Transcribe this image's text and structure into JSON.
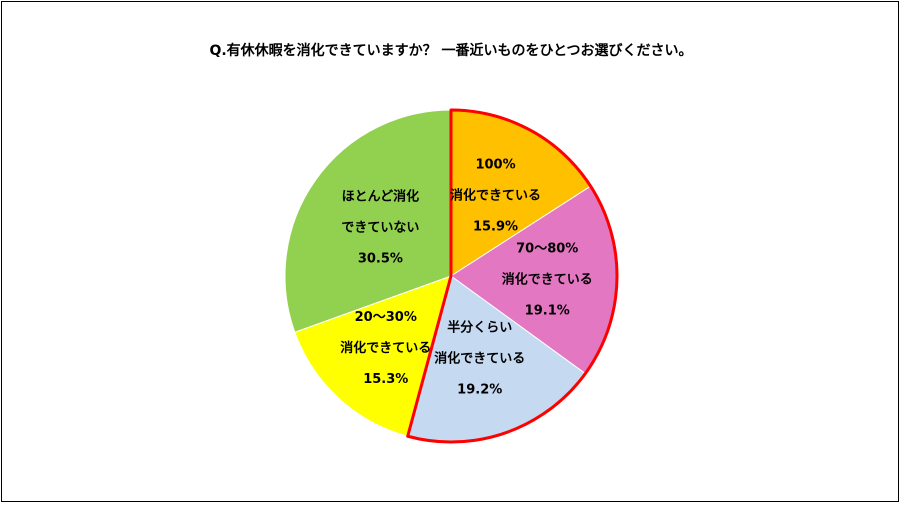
{
  "chart_data": {
    "type": "pie",
    "title": "Q.有休休暇を消化できていますか？ 一番近いものをひとつお選びください。",
    "slices": [
      {
        "label_lines": [
          "100%",
          "消化できている"
        ],
        "value": 15.9,
        "value_label": "15.9%",
        "color": "#FFC000",
        "highlighted": true
      },
      {
        "label_lines": [
          "70～80%",
          "消化できている"
        ],
        "value": 19.1,
        "value_label": "19.1%",
        "color": "#E377C2",
        "highlighted": true
      },
      {
        "label_lines": [
          "半分くらい",
          "消化できている"
        ],
        "value": 19.2,
        "value_label": "19.2%",
        "color": "#C5D9F1",
        "highlighted": true
      },
      {
        "label_lines": [
          "20～30%",
          "消化できている"
        ],
        "value": 15.3,
        "value_label": "15.3%",
        "color": "#FFFF00",
        "highlighted": false
      },
      {
        "label_lines": [
          "ほとんど消化",
          "できていない"
        ],
        "value": 30.5,
        "value_label": "30.5%",
        "color": "#92D050",
        "highlighted": false
      }
    ],
    "start_angle_deg": 0,
    "direction": "clockwise",
    "highlight_color": "#FF0000",
    "slice_border_color": "#FFFFFF"
  }
}
